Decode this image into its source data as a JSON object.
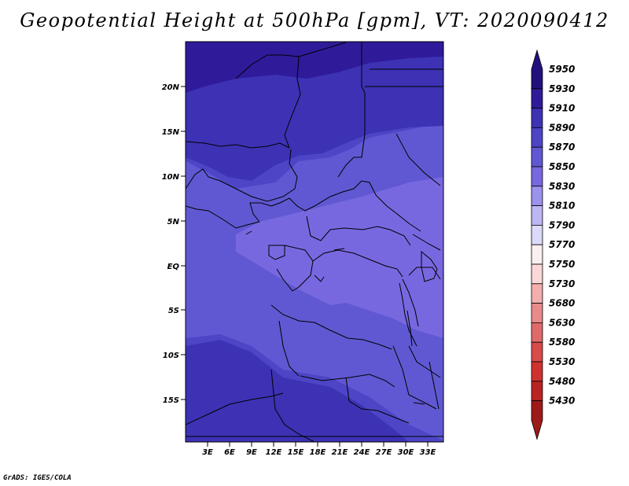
{
  "title": "Geopotential Height at 500hPa [gpm], VT: 2020090412",
  "credit": "GrADS: IGES/COLA",
  "map": {
    "lat_labels": [
      "20N",
      "15N",
      "10N",
      "5N",
      "EQ",
      "5S",
      "10S",
      "15S"
    ],
    "lon_labels": [
      "3E",
      "6E",
      "9E",
      "12E",
      "15E",
      "18E",
      "21E",
      "24E",
      "27E",
      "30E",
      "33E"
    ],
    "field_colors": {
      "c5930": "#2f1b9a",
      "c5910": "#3d32b4",
      "c5890": "#4d45c6",
      "c5870": "#6058d2",
      "c5850": "#7868e0",
      "line": "#000000"
    }
  },
  "colorbar": {
    "labels": [
      "5950",
      "5930",
      "5910",
      "5890",
      "5870",
      "5850",
      "5830",
      "5810",
      "5790",
      "5770",
      "5750",
      "5730",
      "5680",
      "5630",
      "5580",
      "5530",
      "5480",
      "5430"
    ],
    "colors": [
      "#22117d",
      "#2f1b9a",
      "#3d32b4",
      "#4d45c6",
      "#6058d2",
      "#7868e0",
      "#9b92ec",
      "#bcb6f4",
      "#dcdafa",
      "#fbefef",
      "#fbd7d7",
      "#f4aeae",
      "#e98b8b",
      "#e06a6a",
      "#d94a4a",
      "#cf3131",
      "#b92222",
      "#9e1a1a"
    ]
  }
}
